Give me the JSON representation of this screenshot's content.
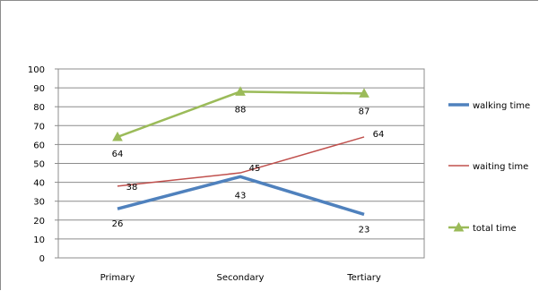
{
  "chart_data": {
    "type": "line",
    "categories": [
      "Primary",
      "Secondary",
      "Tertiary"
    ],
    "ylim": [
      0,
      100
    ],
    "yticks": [
      0,
      10,
      20,
      30,
      40,
      50,
      60,
      70,
      80,
      90,
      100
    ],
    "grid": "horizontal",
    "legend": "right",
    "series": [
      {
        "name": "walking time",
        "values": [
          26,
          43,
          23
        ],
        "color": "#4f81bd",
        "marker": "none",
        "labels": [
          "26",
          "43",
          "23"
        ]
      },
      {
        "name": "waiting time",
        "values": [
          38,
          45,
          64
        ],
        "color": "#c0504d",
        "marker": "none",
        "labels": [
          "38",
          "45",
          "64"
        ]
      },
      {
        "name": "total time",
        "values": [
          64,
          88,
          87
        ],
        "color": "#9bbb59",
        "marker": "triangle",
        "labels": [
          "64",
          "88",
          "87"
        ]
      }
    ]
  }
}
